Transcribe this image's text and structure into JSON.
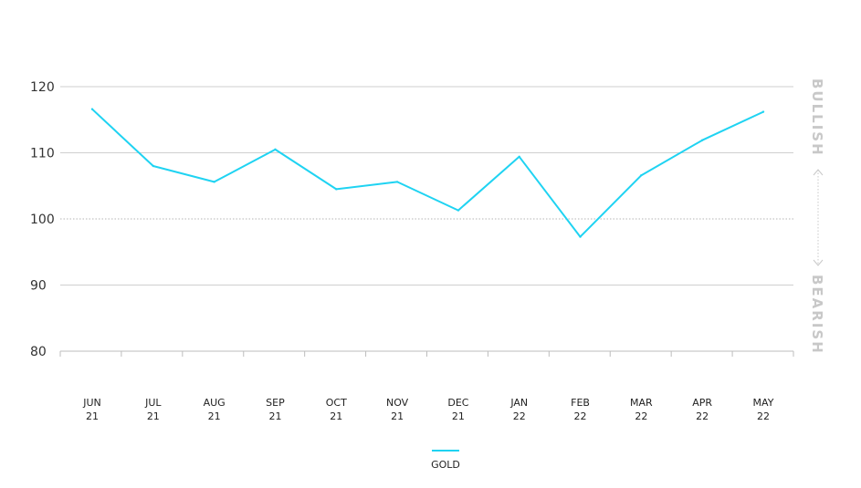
{
  "chart_data": {
    "type": "line",
    "categories": [
      [
        "JUN",
        "21"
      ],
      [
        "JUL",
        "21"
      ],
      [
        "AUG",
        "21"
      ],
      [
        "SEP",
        "21"
      ],
      [
        "OCT",
        "21"
      ],
      [
        "NOV",
        "21"
      ],
      [
        "DEC",
        "21"
      ],
      [
        "JAN",
        "22"
      ],
      [
        "FEB",
        "22"
      ],
      [
        "MAR",
        "22"
      ],
      [
        "APR",
        "22"
      ],
      [
        "MAY",
        "22"
      ]
    ],
    "series": [
      {
        "name": "GOLD",
        "color": "#1fd3f2",
        "values": [
          116.6,
          108.0,
          105.6,
          110.5,
          104.5,
          105.6,
          101.3,
          109.4,
          97.3,
          106.6,
          111.9,
          116.2
        ]
      }
    ],
    "yticks": [
      "120",
      "110",
      "100",
      "90",
      "80"
    ],
    "ylim": [
      80,
      120
    ],
    "reference_line": 100,
    "side_labels": {
      "top": "BULLISH",
      "bottom": "BEARISH"
    },
    "grid": true,
    "legend_position": "bottom-center"
  }
}
